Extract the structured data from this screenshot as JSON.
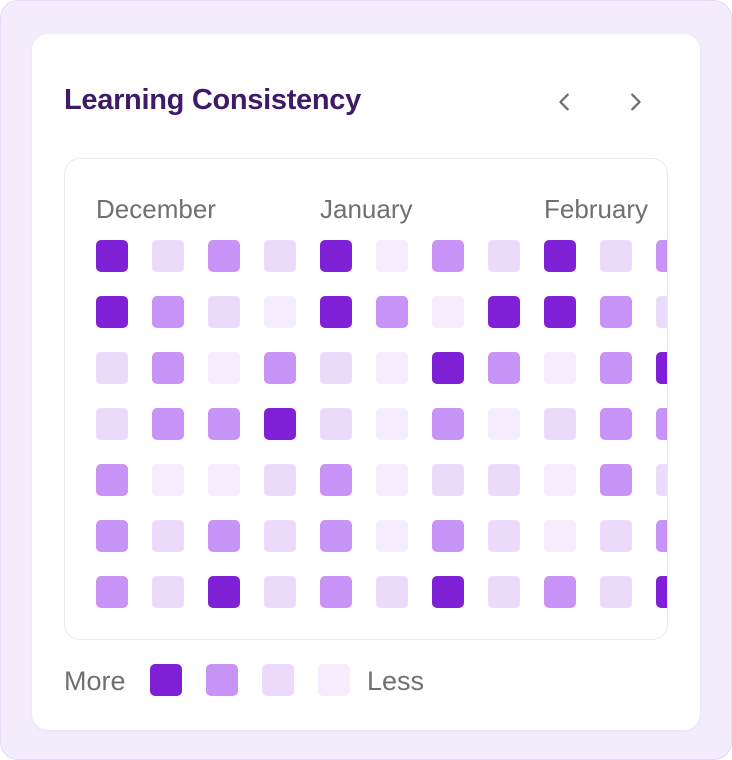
{
  "widget": {
    "title": "Learning Consistency",
    "prev_icon": "chevron-left-icon",
    "next_icon": "chevron-right-icon"
  },
  "months": [
    "December",
    "January",
    "February"
  ],
  "colors": {
    "level_0": "#f5edfd",
    "level_1": "#ebdaf9",
    "level_2": "#c893f6",
    "level_3": "#7f1fd6"
  },
  "heatmap_levels": [
    [
      3,
      1,
      2,
      1,
      3,
      0,
      2,
      1,
      3,
      1,
      2
    ],
    [
      3,
      2,
      1,
      0,
      3,
      2,
      0,
      3,
      3,
      2,
      1
    ],
    [
      1,
      2,
      0,
      2,
      1,
      0,
      3,
      2,
      0,
      2,
      3
    ],
    [
      1,
      2,
      2,
      3,
      1,
      0,
      2,
      0,
      1,
      2,
      2
    ],
    [
      2,
      0,
      0,
      1,
      2,
      0,
      1,
      1,
      0,
      2,
      1
    ],
    [
      2,
      1,
      2,
      1,
      2,
      0,
      2,
      1,
      0,
      1,
      2
    ],
    [
      2,
      1,
      3,
      1,
      2,
      1,
      3,
      1,
      2,
      1,
      3
    ]
  ],
  "legend": {
    "more_label": "More",
    "less_label": "Less",
    "levels": [
      3,
      2,
      1,
      0
    ]
  }
}
